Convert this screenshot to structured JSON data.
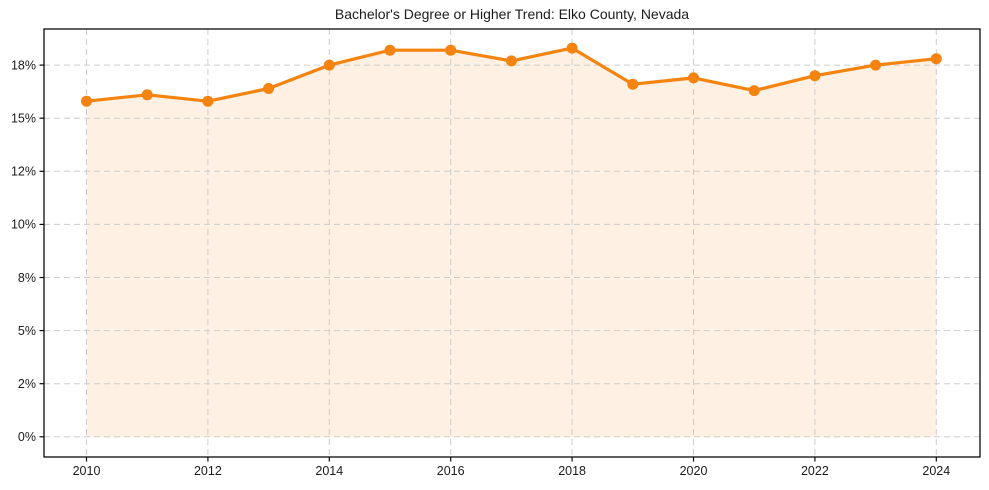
{
  "chart_data": {
    "type": "line",
    "title": "Bachelor's Degree or Higher Trend: Elko County, Nevada",
    "x": [
      2010,
      2011,
      2012,
      2013,
      2014,
      2015,
      2016,
      2017,
      2018,
      2019,
      2020,
      2021,
      2022,
      2023,
      2024
    ],
    "values": [
      15.8,
      16.1,
      15.8,
      16.4,
      17.5,
      18.2,
      18.2,
      17.7,
      18.3,
      16.6,
      16.9,
      16.3,
      17.0,
      17.5,
      17.8
    ],
    "xlabel": "",
    "ylabel": "",
    "xlim": [
      2009.3,
      2024.72
    ],
    "ylim": [
      -0.95,
      19.2
    ],
    "xticks": {
      "values": [
        2010,
        2012,
        2014,
        2016,
        2018,
        2020,
        2022,
        2024
      ],
      "labels": [
        "2010",
        "2012",
        "2014",
        "2016",
        "2018",
        "2020",
        "2022",
        "2024"
      ]
    },
    "yticks": {
      "values": [
        0,
        2.5,
        5,
        7.5,
        10,
        12.5,
        15,
        17.5
      ],
      "labels": [
        "0%",
        "2%",
        "5%",
        "8%",
        "10%",
        "12%",
        "15%",
        "18%"
      ]
    },
    "grid": true,
    "legend": false,
    "fill_to_zero": true,
    "colors": {
      "line": "#f5830f",
      "marker": "#f5830f",
      "fill": "#f5830f",
      "fill_opacity": 0.12,
      "grid": "#cdcdcd",
      "spine": "#0a0a0a",
      "text": "#1c1c1c",
      "background": "#ffffff"
    },
    "marker_radius": 5.5
  }
}
